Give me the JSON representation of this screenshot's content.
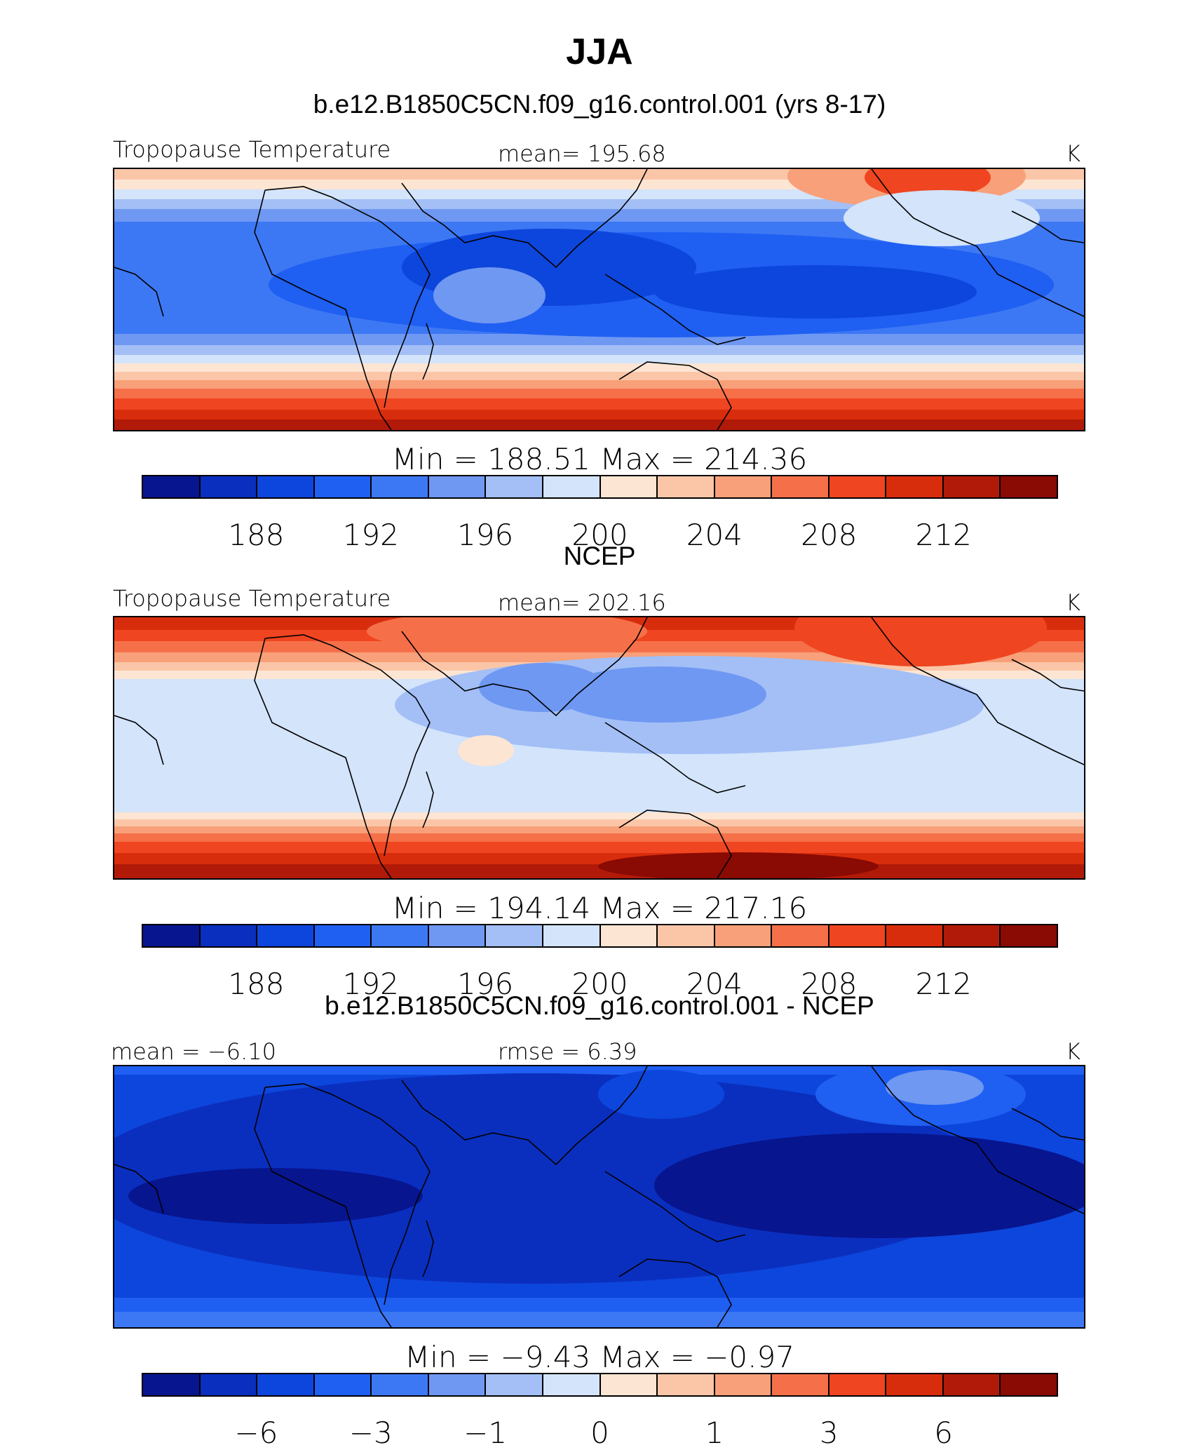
{
  "title": "JJA",
  "colors": {
    "temperature_scale": [
      "#07158f",
      "#0a2fbf",
      "#0d46dc",
      "#1f5ff2",
      "#3d78f4",
      "#6f98f2",
      "#a3bff6",
      "#d3e4fb",
      "#fde5d3",
      "#fbc6a8",
      "#f8a079",
      "#f57049",
      "#ef4520",
      "#d82d0d",
      "#b11a08",
      "#8a0a04"
    ],
    "difference_scale": [
      "#07158f",
      "#0a2fbf",
      "#0d46dc",
      "#1f5ff2",
      "#3d78f4",
      "#6f98f2",
      "#a3bff6",
      "#d3e4fb",
      "#fde5d3",
      "#fbc6a8",
      "#f8a079",
      "#f57049",
      "#ef4520",
      "#d82d0d",
      "#b11a08",
      "#8a0a04"
    ],
    "coastline": "#000000"
  },
  "panels": [
    {
      "title": "b.e12.B1850C5CN.f09_g16.control.001 (yrs 8-17)",
      "left_label": "Tropopause  Temperature",
      "center_label": "mean=  195.68",
      "units": "K",
      "min_max": "Min  =  188.51  Max  =  214.36",
      "colorbar_ticks": [
        "188",
        "192",
        "196",
        "200",
        "204",
        "208",
        "212"
      ],
      "field_style": "model"
    },
    {
      "title": "NCEP",
      "left_label": "Tropopause  Temperature",
      "center_label": "mean=  202.16",
      "units": "K",
      "min_max": "Min  =  194.14  Max  =  217.16",
      "colorbar_ticks": [
        "188",
        "192",
        "196",
        "200",
        "204",
        "208",
        "212"
      ],
      "field_style": "obs"
    },
    {
      "title": "b.e12.B1850C5CN.f09_g16.control.001 - NCEP",
      "left_label": "mean  =    −6.10",
      "center_label": "rmse  =      6.39",
      "units": "K",
      "min_max": "Min  =    −9.43  Max  =    −0.97",
      "colorbar_ticks": [
        "−6",
        "−3",
        "−1",
        "0",
        "1",
        "3",
        "6"
      ],
      "field_style": "diff"
    }
  ]
}
